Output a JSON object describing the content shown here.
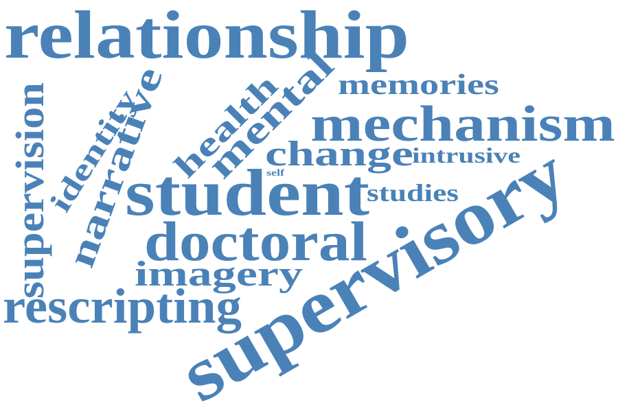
{
  "word_cloud": {
    "color": "#4a82b8",
    "words": [
      {
        "id": "relationship",
        "text": "relationship"
      },
      {
        "id": "supervisory",
        "text": "supervisory"
      },
      {
        "id": "student",
        "text": "student"
      },
      {
        "id": "mechanism",
        "text": "mechanism"
      },
      {
        "id": "doctoral",
        "text": "doctoral"
      },
      {
        "id": "rescripting",
        "text": "rescripting"
      },
      {
        "id": "supervision",
        "text": "supervision"
      },
      {
        "id": "narrative",
        "text": "narrative"
      },
      {
        "id": "identity",
        "text": "identity"
      },
      {
        "id": "health",
        "text": "health"
      },
      {
        "id": "mental",
        "text": "mental"
      },
      {
        "id": "change",
        "text": "change"
      },
      {
        "id": "imagery",
        "text": "imagery"
      },
      {
        "id": "memories",
        "text": "memories"
      },
      {
        "id": "intrusive",
        "text": "intrusive"
      },
      {
        "id": "studies",
        "text": "studies"
      },
      {
        "id": "self",
        "text": "self"
      }
    ]
  }
}
